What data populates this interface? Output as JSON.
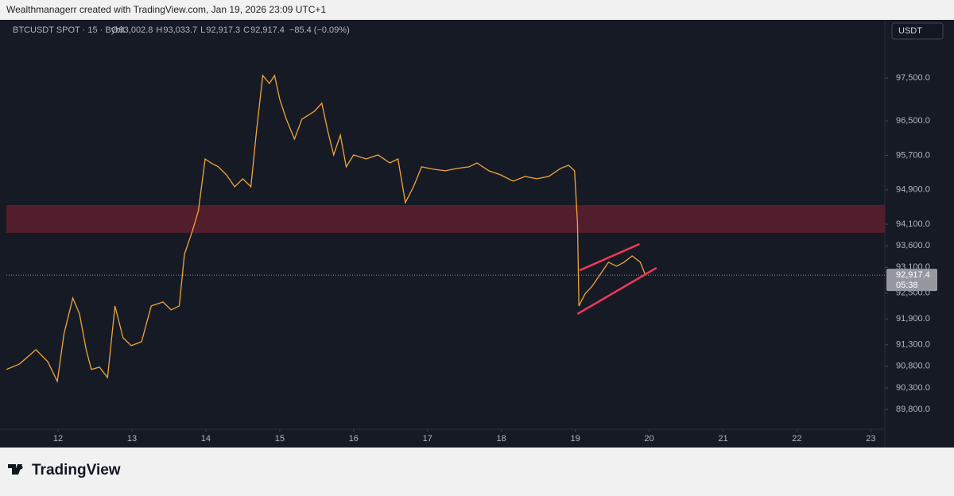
{
  "header": {
    "credit": "Wealthmanagerr created with TradingView.com, Jan 19, 2026 23:09 UTC+1",
    "logo": "TradingView"
  },
  "chart_data": {
    "type": "line",
    "symbol": "BTCUSDT SPOT · 15 · Bybit",
    "ohlc": [
      {
        "label": "O",
        "value": "93,002.8"
      },
      {
        "label": "H",
        "value": "93,033.7"
      },
      {
        "label": "L",
        "value": "92,917.3"
      },
      {
        "label": "C",
        "value": "92,917.4"
      }
    ],
    "change": "−85.4 (−0.09%)",
    "currency": "USDT",
    "series": [
      {
        "name": "BTCUSDT",
        "color": "#f0a53a",
        "x": [
          11.3,
          11.48,
          11.7,
          11.86,
          11.99,
          12.08,
          12.2,
          12.29,
          12.38,
          12.45,
          12.56,
          12.67,
          12.77,
          12.88,
          12.99,
          13.13,
          13.26,
          13.42,
          13.53,
          13.64,
          13.71,
          13.82,
          13.9,
          13.99,
          14.07,
          14.17,
          14.28,
          14.39,
          14.5,
          14.61,
          14.68,
          14.77,
          14.86,
          14.93,
          15.0,
          15.09,
          15.2,
          15.3,
          15.47,
          15.57,
          15.65,
          15.73,
          15.82,
          15.9,
          16.0,
          16.17,
          16.33,
          16.49,
          16.6,
          16.7,
          16.81,
          16.92,
          17.08,
          17.24,
          17.4,
          17.56,
          17.67,
          17.83,
          17.99,
          18.16,
          18.32,
          18.48,
          18.64,
          18.8,
          18.91,
          18.99,
          19.03,
          19.05,
          19.13,
          19.23,
          19.34,
          19.45,
          19.56,
          19.66,
          19.77,
          19.88,
          19.95
        ],
        "values": [
          90726,
          90855,
          91187,
          90910,
          90449,
          91556,
          92387,
          92018,
          91187,
          90726,
          90781,
          90541,
          92202,
          91464,
          91279,
          91372,
          92202,
          92295,
          92110,
          92202,
          93402,
          93956,
          94418,
          95617,
          95525,
          95433,
          95248,
          94971,
          95156,
          94971,
          96171,
          97556,
          97371,
          97556,
          97002,
          96540,
          96079,
          96540,
          96725,
          96910,
          96264,
          95710,
          96171,
          95433,
          95710,
          95617,
          95710,
          95525,
          95617,
          94602,
          94971,
          95433,
          95378,
          95341,
          95396,
          95433,
          95525,
          95341,
          95248,
          95101,
          95211,
          95156,
          95211,
          95396,
          95470,
          95341,
          94141,
          92202,
          92479,
          92664,
          92941,
          93218,
          93125,
          93218,
          93365,
          93218,
          92917
        ]
      }
    ],
    "last_price": 92917.4,
    "last_price_label": "92,917.4",
    "countdown": "05:38",
    "zone": {
      "top": 94546,
      "bottom": 93900,
      "color": "#5a1f2c"
    },
    "channel": {
      "color": "#f0395a",
      "lines": [
        {
          "x": [
            19.06,
            19.87
          ],
          "y": [
            93030,
            93640
          ]
        },
        {
          "x": [
            19.03,
            20.1
          ],
          "y": [
            92016,
            93087
          ]
        }
      ]
    },
    "xlim": [
      11.3,
      23.19
    ],
    "xticks": [
      12,
      13,
      14,
      15,
      16,
      17,
      18,
      19,
      20,
      21,
      22,
      23
    ],
    "ylim": [
      89338,
      98848
    ],
    "yticks": [
      {
        "value": 97500,
        "label": "97,500.0"
      },
      {
        "value": 96500,
        "label": "96,500.0"
      },
      {
        "value": 95700,
        "label": "95,700.0"
      },
      {
        "value": 94900,
        "label": "94,900.0"
      },
      {
        "value": 94100,
        "label": "94,100.0"
      },
      {
        "value": 93600,
        "label": "93,600.0"
      },
      {
        "value": 93100,
        "label": "93,100.0"
      },
      {
        "value": 92500,
        "label": "92,500.0"
      },
      {
        "value": 91900,
        "label": "91,900.0"
      },
      {
        "value": 91300,
        "label": "91,300.0"
      },
      {
        "value": 90800,
        "label": "90,800.0"
      },
      {
        "value": 90300,
        "label": "90,300.0"
      },
      {
        "value": 89800,
        "label": "89,800.0"
      }
    ]
  }
}
